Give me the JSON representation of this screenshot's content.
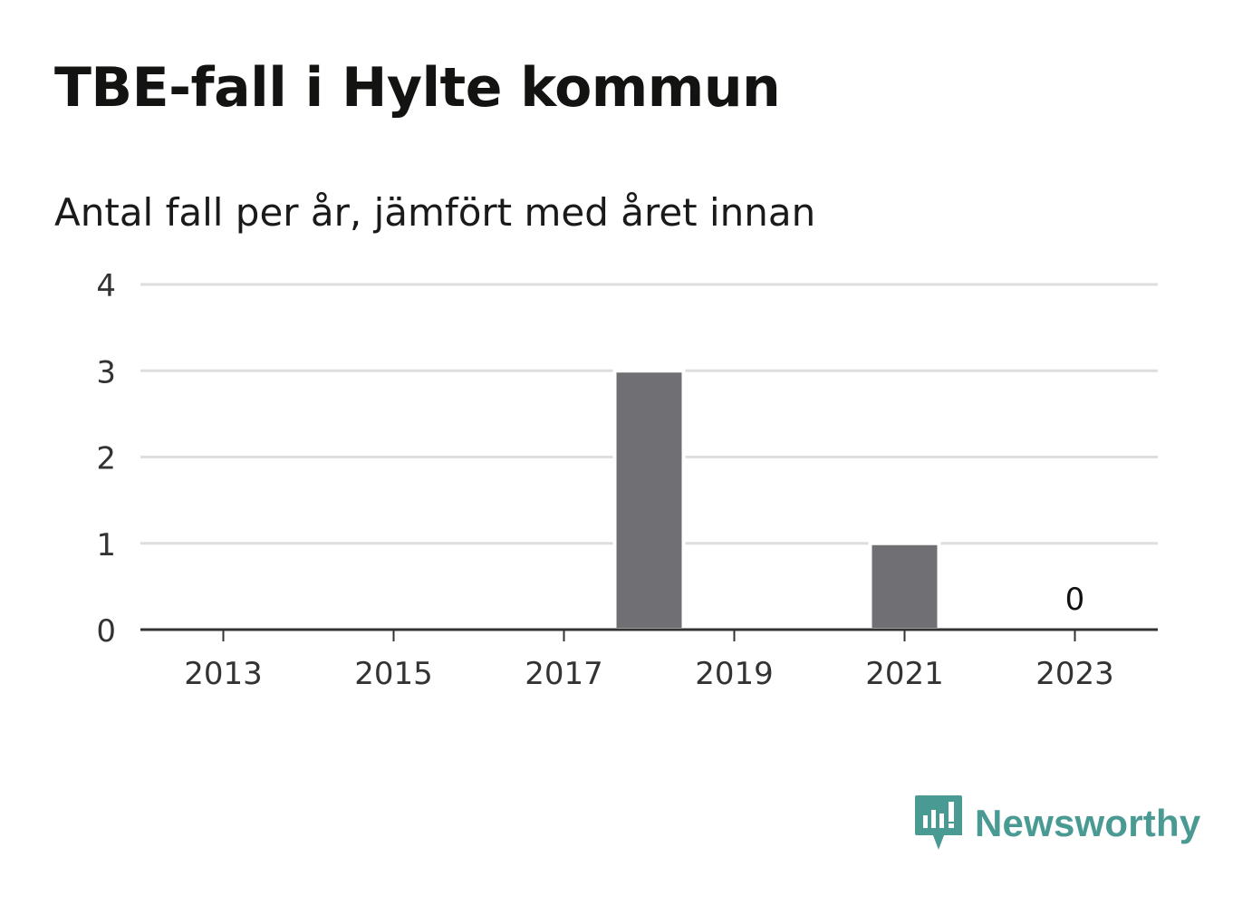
{
  "title": "TBE-fall i Hylte kommun",
  "subtitle": "Antal fall per år, jämfört med året innan",
  "brand": {
    "name": "Newsworthy",
    "color": "#4a9a94",
    "icon": "newsworthy-logo-icon"
  },
  "colors": {
    "bar": "#706f74",
    "grid": "#dedede",
    "axis": "#333333",
    "tick_label": "#333333"
  },
  "chart_data": {
    "type": "bar",
    "categories": [
      "2013",
      "2014",
      "2015",
      "2016",
      "2017",
      "2018",
      "2019",
      "2020",
      "2021",
      "2022",
      "2023"
    ],
    "values": [
      0,
      0,
      0,
      0,
      0,
      3,
      0,
      0,
      1,
      0,
      0
    ],
    "x_tick_labels": [
      "2013",
      "2015",
      "2017",
      "2019",
      "2021",
      "2023"
    ],
    "y_ticks": [
      0,
      1,
      2,
      3,
      4
    ],
    "ylim": [
      0,
      4
    ],
    "grid": true,
    "xlabel": "",
    "ylabel": "",
    "annotations": [
      {
        "category": "2023",
        "text": "0"
      }
    ]
  }
}
